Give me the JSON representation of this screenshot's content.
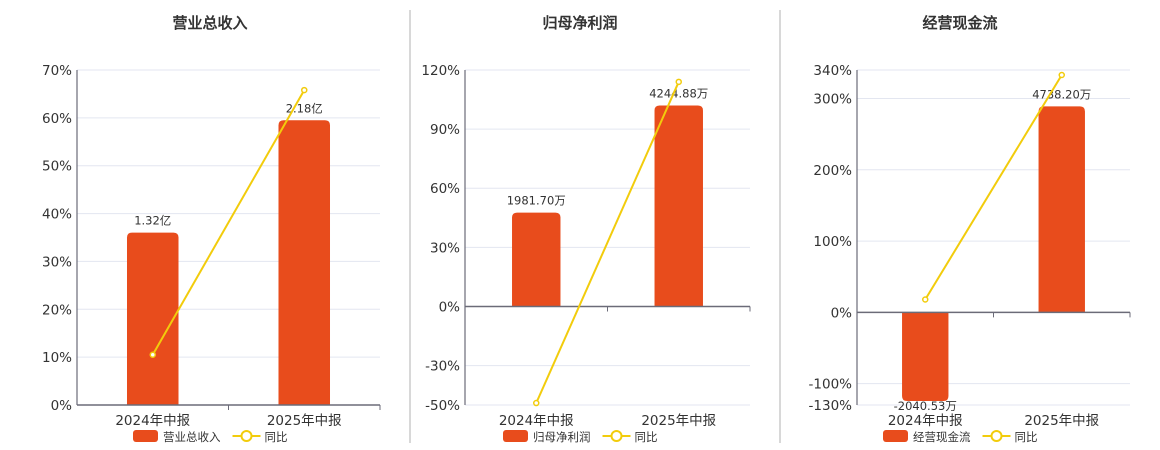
{
  "colors": {
    "bar": "#e84c1c",
    "line": "#f2cc0c",
    "grid": "#e3e6f0",
    "axis": "#6b6b78",
    "divider": "#b0b0b0"
  },
  "chart_data": [
    {
      "type": "bar+line",
      "title": "营业总收入",
      "categories": [
        "2024年中报",
        "2025年中报"
      ],
      "bar_series": {
        "name": "营业总收入",
        "values": [
          1.32,
          2.18
        ],
        "labels": [
          "1.32亿",
          "2.18亿"
        ],
        "unit": "亿"
      },
      "line_series": {
        "name": "同比",
        "values": [
          10.5,
          65.8
        ],
        "unit": "%"
      },
      "y_ticks": [
        0,
        10,
        20,
        30,
        40,
        50,
        60,
        70
      ],
      "y_tick_labels": [
        "0%",
        "10%",
        "20%",
        "30%",
        "40%",
        "50%",
        "60%",
        "70%"
      ],
      "ylim": [
        0,
        70
      ],
      "grid": true,
      "legend": "bottom"
    },
    {
      "type": "bar+line",
      "title": "归母净利润",
      "categories": [
        "2024年中报",
        "2025年中报"
      ],
      "bar_series": {
        "name": "归母净利润",
        "values": [
          1981.7,
          4244.88
        ],
        "labels": [
          "1981.70万",
          "4244.88万"
        ],
        "unit": "万"
      },
      "line_series": {
        "name": "同比",
        "values": [
          -49,
          114
        ],
        "unit": "%"
      },
      "y_ticks": [
        -50,
        -30,
        0,
        30,
        60,
        90,
        120
      ],
      "y_tick_labels": [
        "-50%",
        "-30%",
        "0%",
        "30%",
        "60%",
        "90%",
        "120%"
      ],
      "ylim": [
        -50,
        120
      ],
      "grid": true,
      "legend": "bottom"
    },
    {
      "type": "bar+line",
      "title": "经营现金流",
      "categories": [
        "2024年中报",
        "2025年中报"
      ],
      "bar_series": {
        "name": "经营现金流",
        "values": [
          -2040.53,
          4738.2
        ],
        "labels": [
          "-2040.53万",
          "4738.20万"
        ],
        "unit": "万"
      },
      "line_series": {
        "name": "同比",
        "values": [
          18,
          333
        ],
        "unit": "%"
      },
      "y_ticks": [
        -130,
        -100,
        0,
        100,
        200,
        300,
        340
      ],
      "y_tick_labels": [
        "-130%",
        "-100%",
        "0%",
        "100%",
        "200%",
        "300%",
        "340%"
      ],
      "ylim": [
        -130,
        340
      ],
      "grid": true,
      "legend": "bottom"
    }
  ]
}
